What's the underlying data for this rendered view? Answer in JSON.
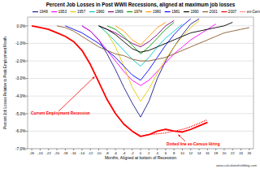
{
  "chart_data": {
    "type": "line",
    "title": "Percent Job Losses in Post WWII Recessions, aligned at maximum job losses",
    "x_label": "Months, Aligned at bottom of Recession",
    "y_label": "Percent Job Losses Relative to Peak Employment Month",
    "annotations": [
      "Current Employment Recession",
      "Dotted line ex-Census Hiring"
    ],
    "source": "www.calculatedriskblog.com",
    "legend": "top",
    "grid": true,
    "xlim": [
      -27,
      27
    ],
    "xticks": [
      -26,
      -24,
      -22,
      -20,
      -18,
      -16,
      -14,
      -12,
      -10,
      -8,
      -6,
      -4,
      -2,
      0,
      2,
      4,
      6,
      8,
      10,
      12,
      14,
      16,
      18,
      20,
      22,
      24,
      26
    ],
    "ylim": [
      -7,
      0.5
    ],
    "yticks": [
      {
        "value": 0,
        "label": "0.0%"
      },
      {
        "value": -1,
        "label": "-1.0%"
      },
      {
        "value": -2,
        "label": "-2.0%"
      },
      {
        "value": -3,
        "label": "-3.0%"
      },
      {
        "value": -4,
        "label": "-4.0%"
      },
      {
        "value": -5,
        "label": "-5.0%"
      },
      {
        "value": -6,
        "label": "-6.0%"
      },
      {
        "value": -7,
        "label": "-7.0%"
      }
    ],
    "x": [
      -26,
      -24,
      -22,
      -20,
      -18,
      -16,
      -14,
      -12,
      -10,
      -8,
      -6,
      -4,
      -2,
      0,
      2,
      4,
      6,
      8,
      10,
      12,
      14,
      16,
      18,
      20,
      22,
      24,
      26
    ],
    "series": [
      {
        "name": "1948",
        "color": "#1a1a8c",
        "values": [
          null,
          null,
          null,
          null,
          null,
          null,
          0,
          -0.3,
          -0.8,
          -1.6,
          -2.5,
          -3.5,
          -4.4,
          -5.2,
          -4.3,
          -3.0,
          -2.0,
          -1.2,
          -0.5,
          0.1,
          0.4,
          null,
          null,
          null,
          null,
          null,
          null
        ]
      },
      {
        "name": "1953",
        "color": "#ff00ff",
        "values": [
          null,
          null,
          null,
          null,
          null,
          null,
          0,
          -0.3,
          -0.8,
          -1.4,
          -2.0,
          -2.6,
          -3.1,
          -3.4,
          -3.1,
          -2.6,
          -2.1,
          -1.6,
          -1.2,
          -0.8,
          -0.5,
          -0.2,
          0.1,
          null,
          null,
          null,
          null
        ]
      },
      {
        "name": "1957",
        "color": "#e8c800",
        "values": [
          null,
          null,
          null,
          null,
          null,
          null,
          null,
          null,
          0,
          -0.4,
          -1.2,
          -2.3,
          -3.5,
          -4.3,
          -3.6,
          -2.7,
          -1.9,
          -1.2,
          -0.6,
          -0.1,
          0.3,
          null,
          null,
          null,
          null,
          null,
          null
        ]
      },
      {
        "name": "1960",
        "color": "#00c8c8",
        "values": [
          null,
          null,
          null,
          null,
          null,
          null,
          null,
          null,
          0,
          -0.4,
          -0.9,
          -1.4,
          -1.9,
          -2.3,
          -1.8,
          -1.2,
          -0.7,
          -0.3,
          0.1,
          null,
          null,
          null,
          null,
          null,
          null,
          null,
          null
        ]
      },
      {
        "name": "1969",
        "color": "#800080",
        "values": [
          null,
          null,
          null,
          null,
          null,
          null,
          null,
          null,
          0,
          -0.2,
          -0.4,
          -0.7,
          -1.0,
          -1.2,
          -0.9,
          -0.5,
          0.0,
          0.3,
          null,
          null,
          null,
          null,
          null,
          null,
          null,
          null,
          null
        ]
      },
      {
        "name": "1974",
        "color": "#00a000",
        "values": [
          null,
          null,
          null,
          null,
          null,
          null,
          null,
          null,
          null,
          0,
          -0.2,
          -0.6,
          -1.1,
          -1.6,
          -1.2,
          -0.7,
          -0.2,
          0.2,
          null,
          null,
          null,
          null,
          null,
          null,
          null,
          null,
          null
        ]
      },
      {
        "name": "1980",
        "color": "#ff9900",
        "values": [
          null,
          null,
          null,
          null,
          null,
          null,
          null,
          null,
          null,
          null,
          0,
          -0.3,
          -0.8,
          -1.1,
          -0.6,
          -0.1,
          0.2,
          null,
          null,
          null,
          null,
          null,
          null,
          null,
          null,
          null,
          null
        ]
      },
      {
        "name": "1981",
        "color": "#0000ff",
        "values": [
          null,
          null,
          null,
          null,
          0,
          -0.2,
          -0.4,
          -0.7,
          -1.0,
          -1.4,
          -1.8,
          -2.3,
          -2.8,
          -3.1,
          -2.5,
          -1.8,
          -1.1,
          -0.5,
          0.0,
          0.4,
          null,
          null,
          null,
          null,
          null,
          null,
          null
        ]
      },
      {
        "name": "1990",
        "color": "#000000",
        "values": [
          null,
          null,
          null,
          null,
          null,
          null,
          null,
          null,
          0,
          -0.2,
          -0.5,
          -0.9,
          -1.3,
          -1.5,
          -1.4,
          -1.2,
          -1.0,
          -0.8,
          -0.6,
          -0.4,
          -0.3,
          -0.2,
          -0.1,
          0.0,
          0.2,
          null,
          null
        ]
      },
      {
        "name": "2001",
        "color": "#8b5a2b",
        "values": [
          null,
          null,
          null,
          0,
          -0.1,
          -0.3,
          -0.6,
          -0.9,
          -1.2,
          -1.4,
          -1.6,
          -1.7,
          -1.9,
          -2.0,
          -2.0,
          -1.9,
          -1.8,
          -1.6,
          -1.4,
          -1.2,
          -1.0,
          -0.8,
          -0.6,
          -0.4,
          -0.3,
          -0.2,
          -0.1
        ]
      },
      {
        "name": "2007",
        "color": "#ff0000",
        "values": [
          0,
          -0.1,
          -0.2,
          -0.4,
          -0.6,
          -0.9,
          -1.4,
          -2.2,
          -3.2,
          -4.2,
          -5.0,
          -5.6,
          -6.0,
          -6.3,
          -6.2,
          -6.0,
          -5.9,
          -6.0,
          -6.05,
          -5.9,
          -5.7,
          -5.5,
          null,
          null,
          null,
          null,
          null
        ]
      },
      {
        "name": "ex-Census",
        "color": "#ff0000",
        "line_style": "dotted",
        "values": [
          null,
          null,
          null,
          null,
          null,
          null,
          null,
          null,
          null,
          null,
          null,
          null,
          null,
          null,
          -6.2,
          -6.15,
          -6.1,
          -6.0,
          -5.9,
          -5.75,
          -5.55,
          -5.35,
          null,
          null,
          null,
          null,
          null
        ]
      }
    ]
  }
}
